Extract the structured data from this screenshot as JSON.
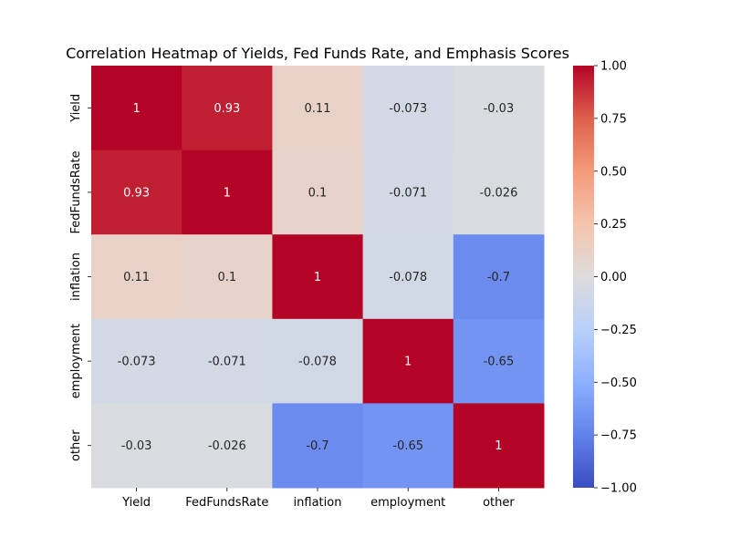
{
  "chart_data": {
    "type": "heatmap",
    "title": "Correlation Heatmap of Yields, Fed Funds Rate, and Emphasis Scores",
    "row_labels": [
      "Yield",
      "FedFundsRate",
      "inflation",
      "employment",
      "other"
    ],
    "col_labels": [
      "Yield",
      "FedFundsRate",
      "inflation",
      "employment",
      "other"
    ],
    "values": [
      [
        1,
        0.93,
        0.11,
        -0.073,
        -0.03
      ],
      [
        0.93,
        1,
        0.1,
        -0.071,
        -0.026
      ],
      [
        0.11,
        0.1,
        1,
        -0.078,
        -0.7
      ],
      [
        -0.073,
        -0.071,
        -0.078,
        1,
        -0.65
      ],
      [
        -0.03,
        -0.026,
        -0.7,
        -0.65,
        1
      ]
    ],
    "annotations": [
      [
        "1",
        "0.93",
        "0.11",
        "-0.073",
        "-0.03"
      ],
      [
        "0.93",
        "1",
        "0.1",
        "-0.071",
        "-0.026"
      ],
      [
        "0.11",
        "0.1",
        "1",
        "-0.078",
        "-0.7"
      ],
      [
        "-0.073",
        "-0.071",
        "-0.078",
        "1",
        "-0.65"
      ],
      [
        "-0.03",
        "-0.026",
        "-0.7",
        "-0.65",
        "1"
      ]
    ],
    "colormap": "coolwarm",
    "vmin": -1,
    "vmax": 1,
    "colorbar_ticks": [
      "1.00",
      "0.75",
      "0.50",
      "0.25",
      "0.00",
      "−0.25",
      "−0.50",
      "−0.75",
      "−1.00"
    ],
    "colorbar_tick_values": [
      1,
      0.75,
      0.5,
      0.25,
      0,
      -0.25,
      -0.5,
      -0.75,
      -1
    ],
    "grid": false
  }
}
